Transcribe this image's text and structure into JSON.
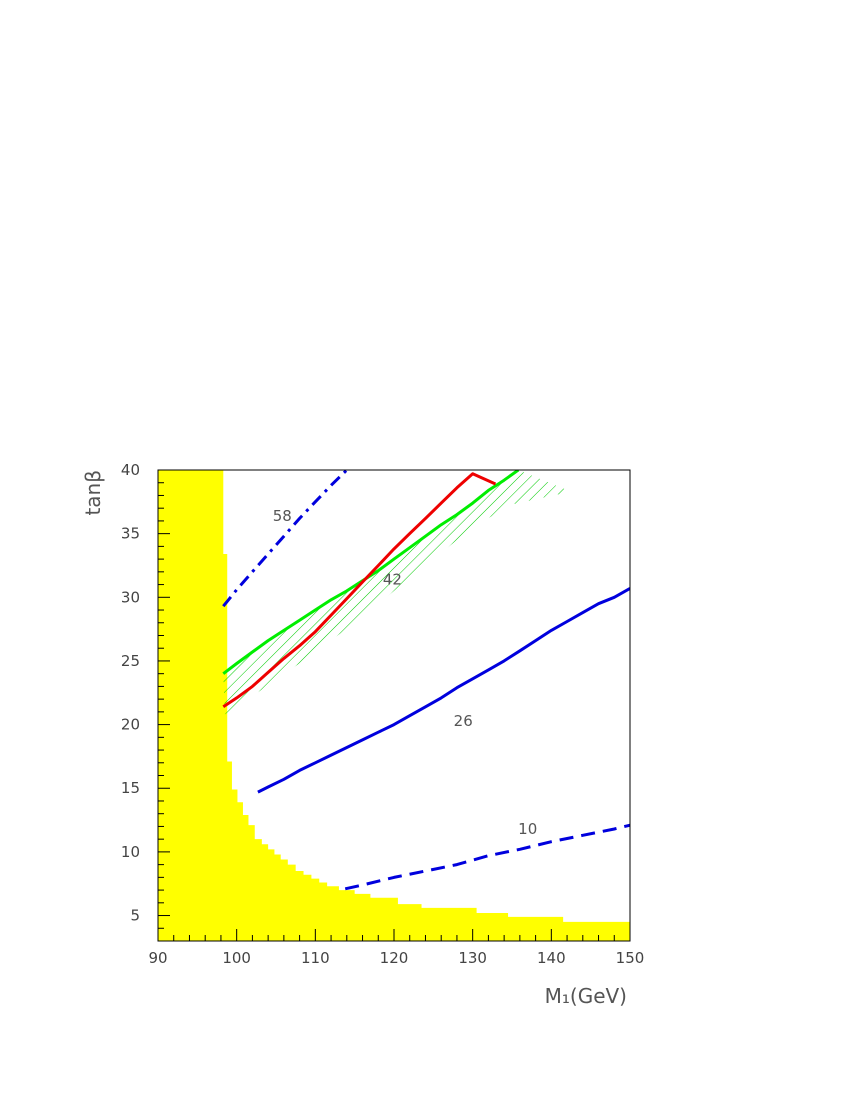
{
  "chart_data": {
    "type": "line",
    "xlabel": "M₁(GeV)",
    "ylabel": "tanβ",
    "xlim": [
      90,
      150
    ],
    "ylim": [
      3,
      40
    ],
    "x_ticks": [
      "90",
      "100",
      "110",
      "120",
      "130",
      "140",
      "150"
    ],
    "y_ticks": [
      "5",
      "10",
      "15",
      "20",
      "25",
      "30",
      "35",
      "40"
    ],
    "grid": false,
    "legend": "none",
    "colors": {
      "excluded": "#ffff00",
      "blue": "#0000dd",
      "green": "#00ee00",
      "red": "#ee0000",
      "hatch": "#00cc00"
    },
    "excluded_region": {
      "boundary": [
        [
          98.3,
          40
        ],
        [
          98.3,
          33.4
        ],
        [
          98.8,
          33.4
        ],
        [
          98.8,
          17.1
        ],
        [
          99.4,
          17.1
        ],
        [
          99.4,
          14.9
        ],
        [
          100.1,
          14.9
        ],
        [
          100.1,
          13.9
        ],
        [
          100.8,
          13.9
        ],
        [
          100.8,
          12.9
        ],
        [
          101.5,
          12.9
        ],
        [
          101.5,
          12.1
        ],
        [
          102.3,
          12.1
        ],
        [
          102.3,
          11.0
        ],
        [
          103.2,
          11.0
        ],
        [
          103.2,
          10.6
        ],
        [
          104.0,
          10.6
        ],
        [
          104.0,
          10.2
        ],
        [
          104.8,
          10.2
        ],
        [
          104.8,
          9.8
        ],
        [
          105.6,
          9.8
        ],
        [
          105.6,
          9.4
        ],
        [
          106.5,
          9.4
        ],
        [
          106.5,
          9.0
        ],
        [
          107.5,
          9.0
        ],
        [
          107.5,
          8.5
        ],
        [
          108.5,
          8.5
        ],
        [
          108.5,
          8.2
        ],
        [
          109.5,
          8.2
        ],
        [
          109.5,
          7.9
        ],
        [
          110.5,
          7.9
        ],
        [
          110.5,
          7.6
        ],
        [
          111.5,
          7.6
        ],
        [
          111.5,
          7.3
        ],
        [
          113.0,
          7.3
        ],
        [
          113.0,
          7.0
        ],
        [
          115.0,
          7.0
        ],
        [
          115.0,
          6.7
        ],
        [
          117.0,
          6.7
        ],
        [
          117.0,
          6.4
        ],
        [
          120.5,
          6.4
        ],
        [
          120.5,
          5.9
        ],
        [
          123.5,
          5.9
        ],
        [
          123.5,
          5.6
        ],
        [
          130.5,
          5.6
        ],
        [
          130.5,
          5.2
        ],
        [
          134.5,
          5.2
        ],
        [
          134.5,
          4.9
        ],
        [
          141.5,
          4.9
        ],
        [
          141.5,
          4.5
        ],
        [
          150,
          4.5
        ]
      ]
    },
    "series": [
      {
        "label": "58",
        "color": "#0000dd",
        "style": "dashdot",
        "points": [
          [
            98.3,
            29.3
          ],
          [
            100,
            30.6
          ],
          [
            102,
            32.0
          ],
          [
            104,
            33.4
          ],
          [
            106,
            34.8
          ],
          [
            108,
            36.2
          ],
          [
            110,
            37.5
          ],
          [
            112,
            38.8
          ],
          [
            114,
            40.0
          ]
        ]
      },
      {
        "label": "26",
        "color": "#0000dd",
        "style": "solid",
        "points": [
          [
            102.7,
            14.7
          ],
          [
            104,
            15.1
          ],
          [
            106,
            15.7
          ],
          [
            108,
            16.4
          ],
          [
            110,
            17.0
          ],
          [
            112,
            17.6
          ],
          [
            114,
            18.2
          ],
          [
            116,
            18.8
          ],
          [
            118,
            19.4
          ],
          [
            120,
            20.0
          ],
          [
            122,
            20.7
          ],
          [
            124,
            21.4
          ],
          [
            126,
            22.1
          ],
          [
            128,
            22.9
          ],
          [
            130,
            23.6
          ],
          [
            132,
            24.3
          ],
          [
            134,
            25.0
          ],
          [
            136,
            25.8
          ],
          [
            138,
            26.6
          ],
          [
            140,
            27.4
          ],
          [
            142,
            28.1
          ],
          [
            144,
            28.8
          ],
          [
            146,
            29.5
          ],
          [
            148,
            30.0
          ],
          [
            150,
            30.7
          ]
        ]
      },
      {
        "label": "10",
        "color": "#0000dd",
        "style": "dashed",
        "points": [
          [
            113.8,
            7.1
          ],
          [
            116,
            7.4
          ],
          [
            120,
            8.0
          ],
          [
            124,
            8.5
          ],
          [
            128,
            9.0
          ],
          [
            132,
            9.7
          ],
          [
            136,
            10.2
          ],
          [
            140,
            10.8
          ],
          [
            144,
            11.3
          ],
          [
            148,
            11.8
          ],
          [
            150,
            12.1
          ]
        ]
      },
      {
        "label": "",
        "color": "#00ee00",
        "style": "solid",
        "points": [
          [
            98.3,
            24.0
          ],
          [
            100,
            24.8
          ],
          [
            102,
            25.7
          ],
          [
            104,
            26.6
          ],
          [
            106,
            27.4
          ],
          [
            108,
            28.2
          ],
          [
            110,
            29.0
          ],
          [
            112,
            29.8
          ],
          [
            114,
            30.5
          ],
          [
            116,
            31.3
          ],
          [
            118,
            32.1
          ],
          [
            120,
            33.0
          ],
          [
            122,
            33.9
          ],
          [
            124,
            34.8
          ],
          [
            126,
            35.7
          ],
          [
            128,
            36.5
          ],
          [
            130,
            37.4
          ],
          [
            132,
            38.4
          ],
          [
            134,
            39.2
          ],
          [
            135.8,
            40.0
          ]
        ]
      },
      {
        "label": "42",
        "color": "#ee0000",
        "style": "solid",
        "points": [
          [
            98.3,
            21.4
          ],
          [
            100,
            22.1
          ],
          [
            102,
            23.0
          ],
          [
            104,
            24.1
          ],
          [
            106,
            25.2
          ],
          [
            108,
            26.2
          ],
          [
            110,
            27.3
          ],
          [
            112,
            28.6
          ],
          [
            114,
            29.9
          ],
          [
            116,
            31.2
          ],
          [
            118,
            32.5
          ],
          [
            120,
            33.8
          ],
          [
            122,
            35.0
          ],
          [
            124,
            36.2
          ],
          [
            126,
            37.4
          ],
          [
            128,
            38.6
          ],
          [
            130,
            39.7
          ],
          [
            132.9,
            38.9
          ]
        ]
      }
    ],
    "hatched_band": {
      "upper": [
        [
          98.3,
          24.0
        ],
        [
          105,
          27.0
        ],
        [
          110,
          29.0
        ],
        [
          115,
          30.9
        ],
        [
          120,
          33.0
        ],
        [
          125,
          35.3
        ],
        [
          130,
          37.4
        ],
        [
          135.8,
          40.0
        ]
      ],
      "lower": [
        [
          98.5,
          20.8
        ],
        [
          105,
          23.5
        ],
        [
          110,
          25.7
        ],
        [
          115,
          28.0
        ],
        [
          120,
          30.5
        ],
        [
          125,
          33.0
        ],
        [
          130,
          35.5
        ],
        [
          135,
          37.3
        ],
        [
          142.5,
          38.3
        ]
      ]
    },
    "annotations": [
      {
        "text": "58",
        "x": 105.8,
        "y": 36.0
      },
      {
        "text": "42",
        "x": 119.8,
        "y": 31.0
      },
      {
        "text": "26",
        "x": 128.8,
        "y": 19.9
      },
      {
        "text": "10",
        "x": 137.0,
        "y": 11.4
      }
    ]
  }
}
